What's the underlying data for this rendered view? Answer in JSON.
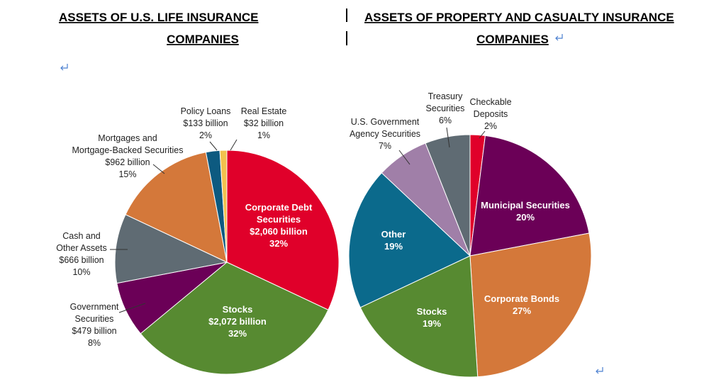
{
  "chart_data": [
    {
      "type": "pie",
      "title": "ASSETS OF U.S. LIFE INSURANCE\nCOMPANIES",
      "categories": [
        "Corporate Debt\nSecurities",
        "Stocks",
        "Government\nSecurities",
        "Cash and\nOther Assets",
        "Mortgages and\nMortgage-Backed Securities",
        "Policy Loans",
        "Real Estate"
      ],
      "values": [
        32,
        32,
        8,
        10,
        15,
        2,
        1
      ],
      "value_labels": [
        "32%",
        "32%",
        "8%",
        "10%",
        "15%",
        "2%",
        "1%"
      ],
      "amount_labels": [
        "$2,060 billion",
        "$2,072 billion",
        "$479 billion",
        "$666 billion",
        "$962 billion",
        "$133 billion",
        "$32 billion"
      ],
      "colors": [
        "#e0002a",
        "#578a31",
        "#6b0057",
        "#5f6b73",
        "#d4783a",
        "#0d5a80",
        "#f2c14e"
      ]
    },
    {
      "type": "pie",
      "title": "ASSETS OF PROPERTY AND CASUALTY INSURANCE\nCOMPANIES",
      "categories": [
        "Checkable\nDeposits",
        "Municipal Securities",
        "Corporate Bonds",
        "Stocks",
        "Other",
        "U.S. Government\nAgency Securities",
        "Treasury\nSecurities"
      ],
      "values": [
        2,
        20,
        27,
        19,
        19,
        7,
        6
      ],
      "value_labels": [
        "2%",
        "20%",
        "27%",
        "19%",
        "19%",
        "7%",
        "6%"
      ],
      "colors": [
        "#e0002a",
        "#6b0057",
        "#d4783a",
        "#578a31",
        "#0b6a8c",
        "#a07fa8",
        "#5f6b73"
      ]
    }
  ]
}
